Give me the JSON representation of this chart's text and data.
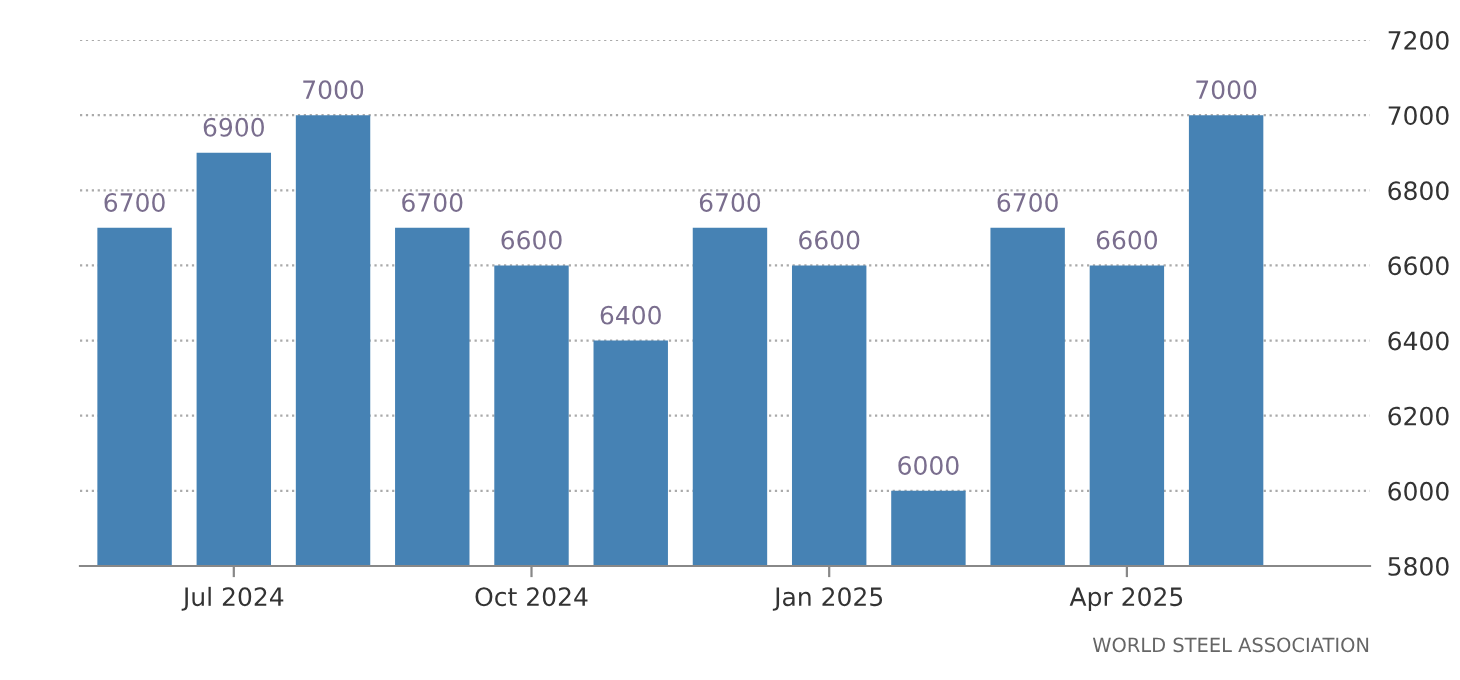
{
  "chart_data": {
    "type": "bar",
    "categories": [
      null,
      "Jul 2024",
      null,
      null,
      "Oct 2024",
      null,
      null,
      "Jan 2025",
      null,
      null,
      "Apr 2025",
      null
    ],
    "values": [
      6700,
      6900,
      7000,
      6700,
      6600,
      6400,
      6700,
      6600,
      6000,
      6700,
      6600,
      7000
    ],
    "color": "#4682b4",
    "ylim": [
      5800,
      7200
    ],
    "yticks": [
      5800,
      6000,
      6200,
      6400,
      6600,
      6800,
      7000,
      7200
    ],
    "grid": "y",
    "data_labels": true,
    "annotations": [
      "WORLD STEEL ASSOCIATION"
    ]
  }
}
